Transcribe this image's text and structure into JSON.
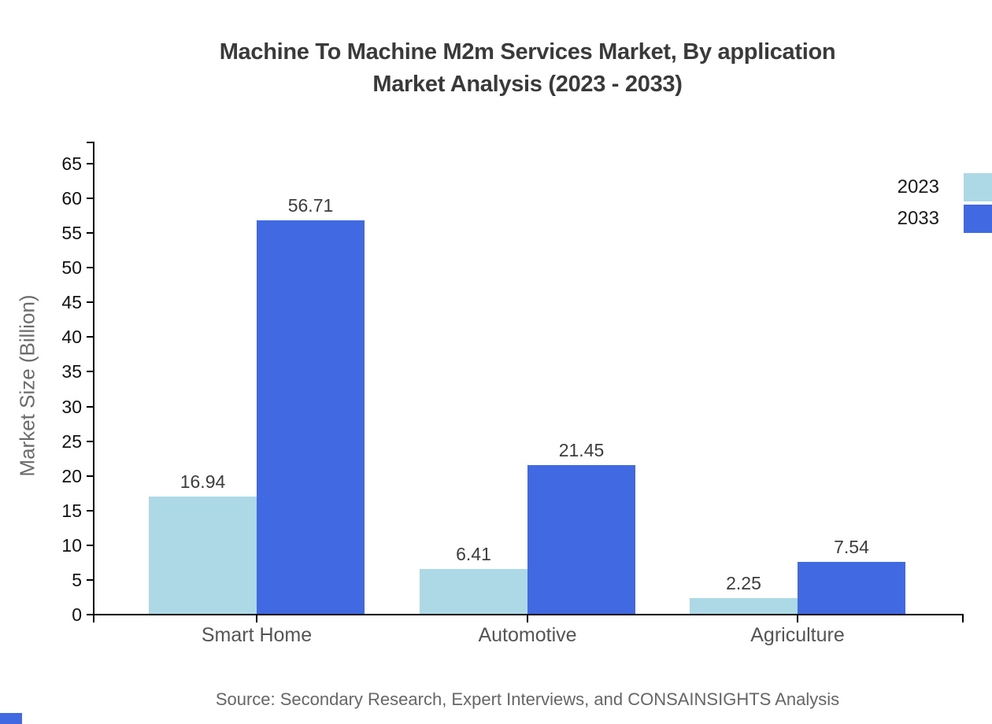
{
  "title": {
    "line1": "Machine To Machine M2m Services Market, By application",
    "line2": "Market Analysis (2023 - 2033)"
  },
  "source_note": "Source: Secondary Research, Expert Interviews, and CONSAINSIGHTS Analysis",
  "legend": {
    "position": "top-right",
    "items": [
      {
        "label": "2023",
        "color": "#ADD8E6"
      },
      {
        "label": "2033",
        "color": "#4169E1"
      }
    ]
  },
  "chart_data": {
    "type": "bar",
    "title": "Machine To Machine M2m Services Market, By application Market Analysis (2023 - 2033)",
    "categories": [
      "Smart Home",
      "Automotive",
      "Agriculture"
    ],
    "series": [
      {
        "name": "2023",
        "color": "#ADD8E6",
        "values": [
          16.94,
          6.41,
          2.25
        ]
      },
      {
        "name": "2033",
        "color": "#4169E1",
        "values": [
          56.71,
          21.45,
          7.54
        ]
      }
    ],
    "xlabel": "",
    "ylabel": "Market Size (Billion)",
    "ylim": [
      0,
      65
    ],
    "ytick_step": 5,
    "grid": false,
    "legend_position": "top-right",
    "value_labels": true
  },
  "colors": {
    "axis": "#000000",
    "tick_label": "#111111",
    "value_label": "#3d3d3d",
    "category_label": "#555555",
    "axis_title": "#6b6b6b",
    "source_text": "#666666",
    "title_text": "#3a3a3a",
    "corner_mark": "#4169E1",
    "background": "#ffffff"
  }
}
